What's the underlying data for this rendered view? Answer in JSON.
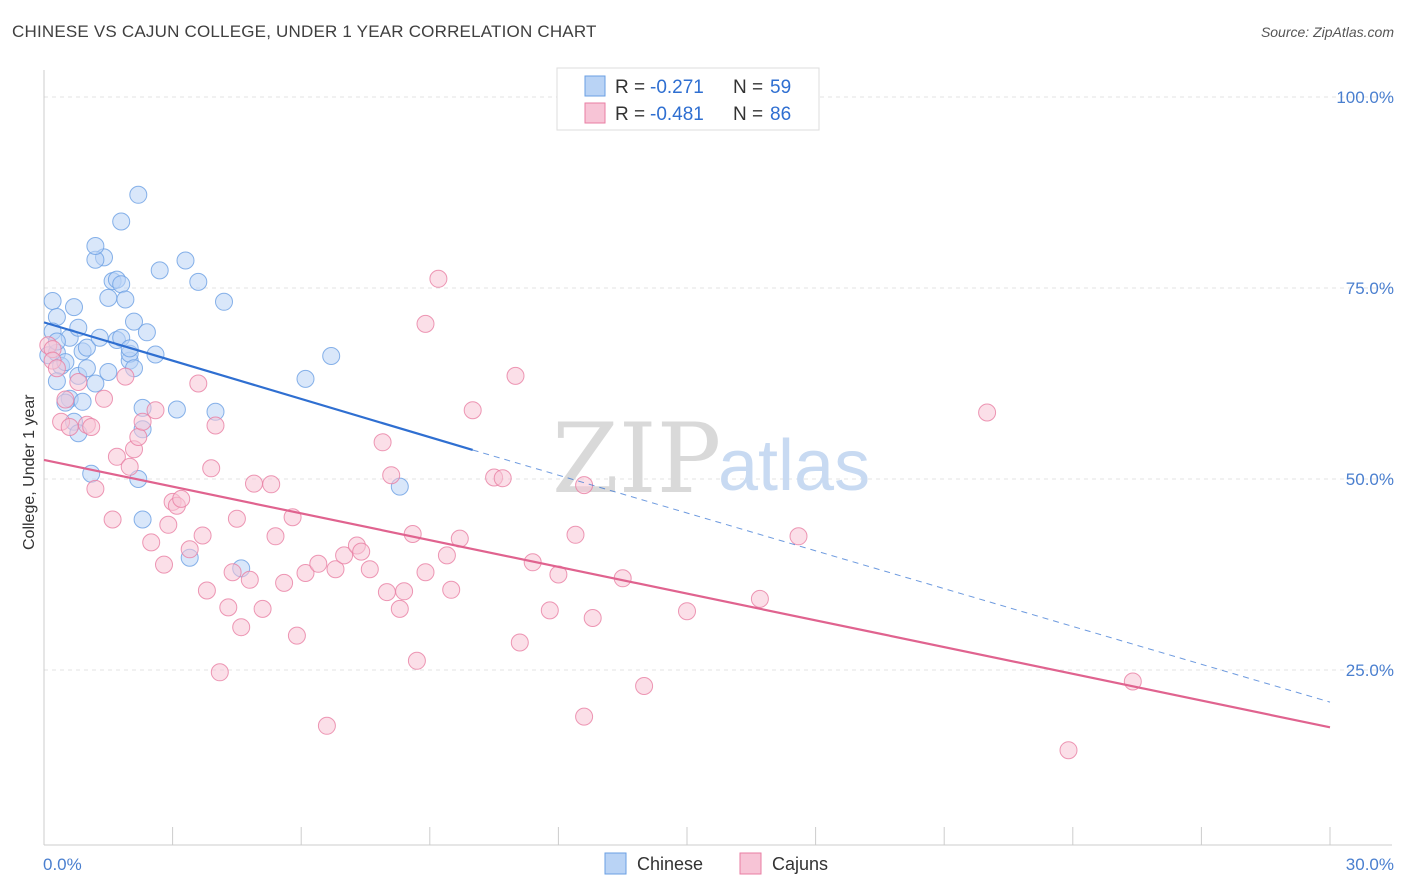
{
  "title": "CHINESE VS CAJUN COLLEGE, UNDER 1 YEAR CORRELATION CHART",
  "source": "Source: ZipAtlas.com",
  "watermark": {
    "zip": "ZIP",
    "atlas": "atlas"
  },
  "legend": {
    "rows": [
      {
        "r_label": "R = ",
        "r_value": "-0.271",
        "n_label": "N = ",
        "n_value": "59"
      },
      {
        "r_label": "R = ",
        "r_value": "-0.481",
        "n_label": "N = ",
        "n_value": "86"
      }
    ]
  },
  "bottom_legend": [
    "Chinese",
    "Cajuns"
  ],
  "colors": {
    "chinese": "#6a9fe3",
    "chinese_fill": "#b9d3f5",
    "cajuns": "#e97ea3",
    "cajuns_fill": "#f7c4d6",
    "blue_line": "#2f6fd1",
    "pink_line": "#e0638f",
    "axis_text": "#4a7fcf"
  },
  "chart_data": {
    "type": "scatter",
    "title": "CHINESE VS CAJUN COLLEGE, UNDER 1 YEAR CORRELATION CHART",
    "xlabel": "",
    "ylabel": "College, Under 1 year",
    "xlim": [
      0,
      30
    ],
    "ylim": [
      0,
      105
    ],
    "x_tick_labels": [
      "0.0%",
      "30.0%"
    ],
    "y_ticks": [
      25,
      50,
      75,
      100
    ],
    "y_tick_labels": [
      "25.0%",
      "50.0%",
      "75.0%",
      "100.0%"
    ],
    "grid": true,
    "legend_position": "top-center",
    "series": [
      {
        "name": "Chinese",
        "r": -0.271,
        "n": 59,
        "trend": {
          "x0": 0,
          "y0": 70.5,
          "x1": 10.0,
          "y1": 53.8,
          "dash_to_x": 30,
          "dash_to_y": 20.8
        },
        "points": [
          [
            0.2,
            73.3
          ],
          [
            0.3,
            71.2
          ],
          [
            0.2,
            69.3
          ],
          [
            0.1,
            66.2
          ],
          [
            0.3,
            66.5
          ],
          [
            0.4,
            64.8
          ],
          [
            0.5,
            65.3
          ],
          [
            0.3,
            62.8
          ],
          [
            0.7,
            72.5
          ],
          [
            0.6,
            68.5
          ],
          [
            0.8,
            69.8
          ],
          [
            0.9,
            66.7
          ],
          [
            1.0,
            67.2
          ],
          [
            0.8,
            63.5
          ],
          [
            1.0,
            64.5
          ],
          [
            1.2,
            62.5
          ],
          [
            0.6,
            60.5
          ],
          [
            0.9,
            60.1
          ],
          [
            0.7,
            57.5
          ],
          [
            0.8,
            56.0
          ],
          [
            1.1,
            50.7
          ],
          [
            1.4,
            79.0
          ],
          [
            1.3,
            68.5
          ],
          [
            1.5,
            73.7
          ],
          [
            1.6,
            75.9
          ],
          [
            1.7,
            76.1
          ],
          [
            1.8,
            75.5
          ],
          [
            1.9,
            73.5
          ],
          [
            1.7,
            68.2
          ],
          [
            1.8,
            68.5
          ],
          [
            2.0,
            65.5
          ],
          [
            2.0,
            66.4
          ],
          [
            2.1,
            64.5
          ],
          [
            2.1,
            70.6
          ],
          [
            2.0,
            67.1
          ],
          [
            2.2,
            87.2
          ],
          [
            1.8,
            83.7
          ],
          [
            2.4,
            69.2
          ],
          [
            1.2,
            78.7
          ],
          [
            1.2,
            80.5
          ],
          [
            2.3,
            59.3
          ],
          [
            2.3,
            56.5
          ],
          [
            2.2,
            50.0
          ],
          [
            2.6,
            66.3
          ],
          [
            2.7,
            77.3
          ],
          [
            3.1,
            59.1
          ],
          [
            3.3,
            78.6
          ],
          [
            3.6,
            75.8
          ],
          [
            4.0,
            58.8
          ],
          [
            4.2,
            73.2
          ],
          [
            3.4,
            39.7
          ],
          [
            4.6,
            38.3
          ],
          [
            6.1,
            63.1
          ],
          [
            6.7,
            66.1
          ],
          [
            8.3,
            49.0
          ],
          [
            2.3,
            44.7
          ],
          [
            0.3,
            68.0
          ],
          [
            1.5,
            64.0
          ],
          [
            0.5,
            60.0
          ]
        ]
      },
      {
        "name": "Cajuns",
        "r": -0.481,
        "n": 86,
        "trend": {
          "x0": 0,
          "y0": 52.5,
          "x1": 30,
          "y1": 17.5
        },
        "points": [
          [
            0.1,
            67.5
          ],
          [
            0.2,
            67.0
          ],
          [
            0.2,
            65.5
          ],
          [
            0.3,
            64.5
          ],
          [
            0.4,
            57.5
          ],
          [
            0.5,
            60.4
          ],
          [
            0.6,
            56.8
          ],
          [
            0.8,
            62.7
          ],
          [
            1.0,
            57.1
          ],
          [
            1.1,
            56.8
          ],
          [
            1.2,
            48.7
          ],
          [
            1.4,
            60.5
          ],
          [
            1.6,
            44.7
          ],
          [
            1.7,
            52.9
          ],
          [
            1.9,
            63.4
          ],
          [
            2.0,
            51.6
          ],
          [
            2.1,
            53.9
          ],
          [
            2.2,
            55.5
          ],
          [
            2.3,
            57.5
          ],
          [
            2.5,
            41.7
          ],
          [
            2.6,
            59.0
          ],
          [
            2.8,
            38.8
          ],
          [
            2.9,
            44.0
          ],
          [
            3.0,
            47.0
          ],
          [
            3.1,
            46.5
          ],
          [
            3.2,
            47.4
          ],
          [
            3.4,
            40.8
          ],
          [
            3.6,
            62.5
          ],
          [
            3.7,
            42.6
          ],
          [
            3.8,
            35.4
          ],
          [
            3.9,
            51.4
          ],
          [
            4.0,
            57.0
          ],
          [
            4.1,
            24.7
          ],
          [
            4.3,
            33.2
          ],
          [
            4.4,
            37.8
          ],
          [
            4.5,
            44.8
          ],
          [
            4.6,
            30.6
          ],
          [
            4.8,
            36.8
          ],
          [
            4.9,
            49.4
          ],
          [
            5.1,
            33.0
          ],
          [
            5.3,
            49.3
          ],
          [
            5.4,
            42.5
          ],
          [
            5.6,
            36.4
          ],
          [
            5.8,
            45.0
          ],
          [
            5.9,
            29.5
          ],
          [
            6.1,
            37.7
          ],
          [
            6.4,
            38.9
          ],
          [
            6.6,
            17.7
          ],
          [
            6.8,
            38.2
          ],
          [
            7.0,
            40.0
          ],
          [
            7.3,
            41.3
          ],
          [
            7.4,
            40.5
          ],
          [
            7.6,
            38.2
          ],
          [
            7.9,
            54.8
          ],
          [
            8.0,
            35.2
          ],
          [
            8.1,
            50.5
          ],
          [
            8.3,
            33.0
          ],
          [
            8.4,
            35.3
          ],
          [
            8.6,
            42.8
          ],
          [
            8.7,
            26.2
          ],
          [
            8.9,
            70.3
          ],
          [
            8.9,
            37.8
          ],
          [
            9.2,
            76.2
          ],
          [
            9.4,
            40.0
          ],
          [
            9.5,
            35.5
          ],
          [
            9.7,
            42.2
          ],
          [
            10.0,
            59.0
          ],
          [
            10.5,
            50.2
          ],
          [
            10.7,
            50.1
          ],
          [
            11.0,
            63.5
          ],
          [
            11.1,
            28.6
          ],
          [
            11.4,
            39.1
          ],
          [
            11.8,
            32.8
          ],
          [
            12.0,
            37.5
          ],
          [
            12.4,
            42.7
          ],
          [
            12.6,
            49.2
          ],
          [
            12.8,
            31.8
          ],
          [
            13.5,
            37.0
          ],
          [
            14.0,
            22.9
          ],
          [
            15.0,
            32.7
          ],
          [
            16.7,
            34.3
          ],
          [
            17.6,
            42.5
          ],
          [
            22.0,
            58.7
          ],
          [
            23.9,
            14.5
          ],
          [
            25.4,
            23.5
          ],
          [
            12.6,
            18.9
          ]
        ]
      }
    ]
  }
}
